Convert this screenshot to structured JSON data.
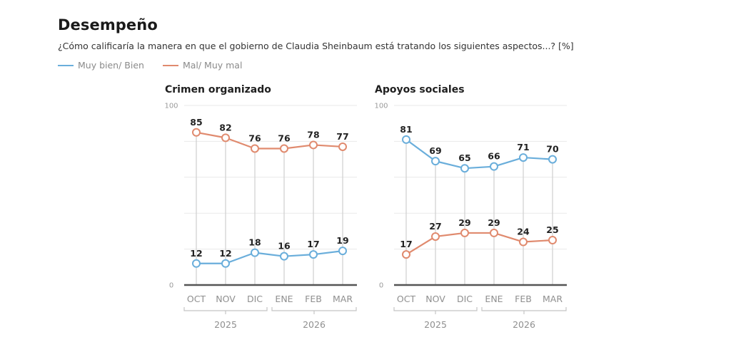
{
  "header": {
    "title": "Desempeño",
    "subtitle": "¿Cómo calificaría la manera en que el gobierno de Claudia Sheinbaum está tratando los siguientes aspectos...?  [%]"
  },
  "legend": [
    {
      "label": "Muy bien/ Bien",
      "color": "#6aaedb"
    },
    {
      "label": "Mal/ Muy mal",
      "color": "#e08a6e"
    }
  ],
  "colors": {
    "positive": "#6aaedb",
    "negative": "#e08a6e",
    "grid": "#e9e9e9",
    "drop_line": "#cfcfcf",
    "baseline": "#555555"
  },
  "chart_data": [
    {
      "type": "line",
      "title": "Crimen organizado",
      "categories": [
        "OCT",
        "NOV",
        "DIC",
        "ENE",
        "FEB",
        "MAR"
      ],
      "year_groups": [
        {
          "label": "2025",
          "months": [
            "OCT",
            "NOV",
            "DIC"
          ]
        },
        {
          "label": "2026",
          "months": [
            "ENE",
            "FEB",
            "MAR"
          ]
        }
      ],
      "ylim": [
        0,
        100
      ],
      "yticks_labeled": [
        0,
        100
      ],
      "gridlines": [
        0,
        20,
        40,
        60,
        80,
        100
      ],
      "grid": true,
      "series": [
        {
          "name": "Mal/ Muy mal",
          "key": "negative",
          "values": [
            85,
            82,
            76,
            76,
            78,
            77
          ]
        },
        {
          "name": "Muy bien/ Bien",
          "key": "positive",
          "values": [
            12,
            12,
            18,
            16,
            17,
            19
          ]
        }
      ]
    },
    {
      "type": "line",
      "title": "Apoyos sociales",
      "categories": [
        "OCT",
        "NOV",
        "DIC",
        "ENE",
        "FEB",
        "MAR"
      ],
      "year_groups": [
        {
          "label": "2025",
          "months": [
            "OCT",
            "NOV",
            "DIC"
          ]
        },
        {
          "label": "2026",
          "months": [
            "ENE",
            "FEB",
            "MAR"
          ]
        }
      ],
      "ylim": [
        0,
        100
      ],
      "yticks_labeled": [
        0,
        100
      ],
      "gridlines": [
        0,
        20,
        40,
        60,
        80,
        100
      ],
      "grid": true,
      "series": [
        {
          "name": "Muy bien/ Bien",
          "key": "positive",
          "values": [
            81,
            69,
            65,
            66,
            71,
            70
          ]
        },
        {
          "name": "Mal/ Muy mal",
          "key": "negative",
          "values": [
            17,
            27,
            29,
            29,
            24,
            25
          ]
        }
      ]
    }
  ]
}
